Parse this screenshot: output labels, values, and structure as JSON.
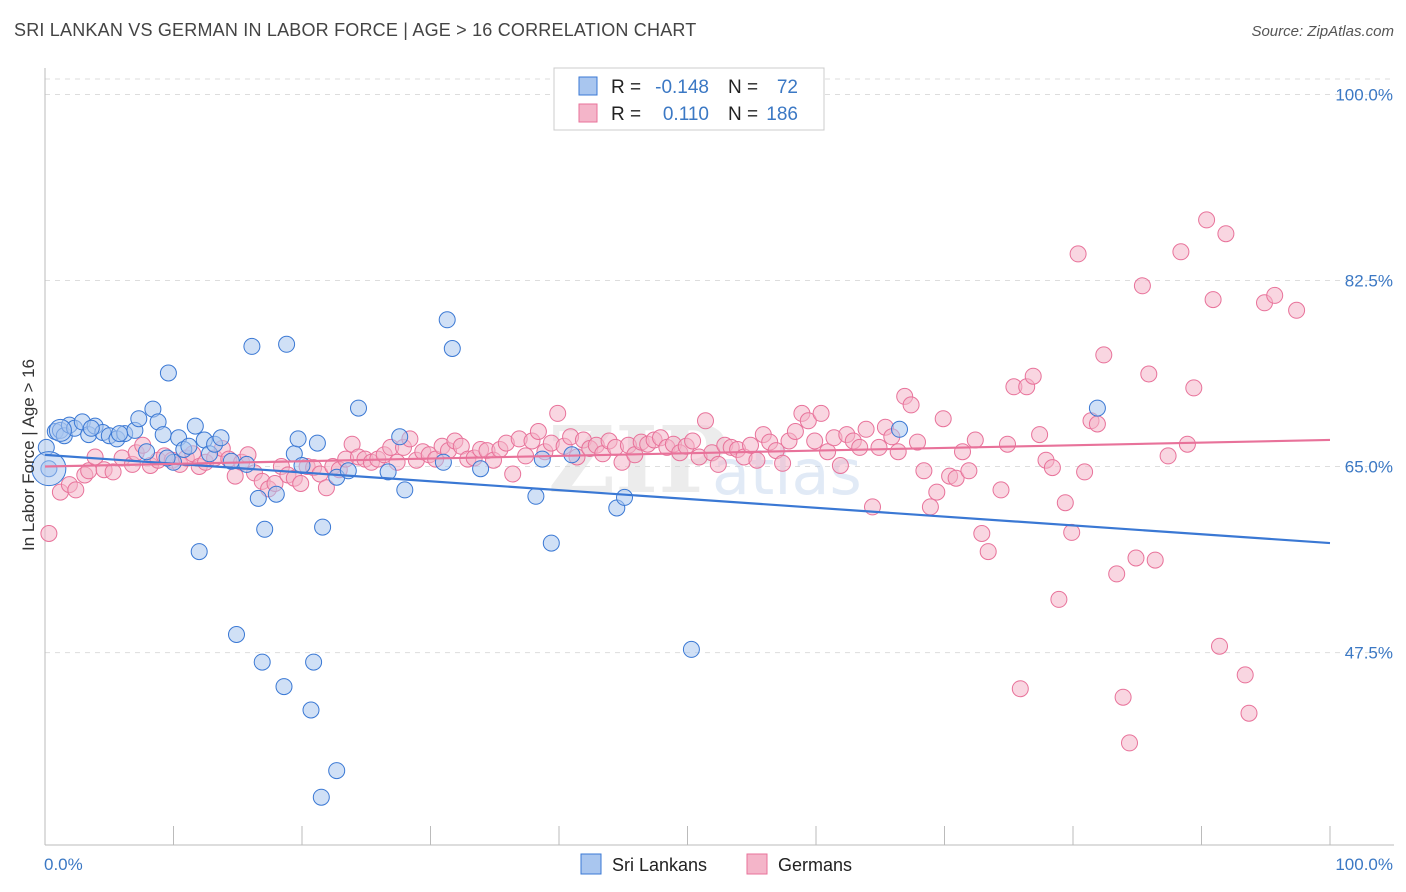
{
  "title": "SRI LANKAN VS GERMAN IN LABOR FORCE | AGE > 16 CORRELATION CHART",
  "source": "Source: ZipAtlas.com",
  "watermark": {
    "zip": "ZIP",
    "atlas": "atlas"
  },
  "colors": {
    "blue": "#3a78d4",
    "blue_fill": "#a9c6ef",
    "pink": "#e8729a",
    "pink_fill": "#f4b5c9",
    "axis_text": "#3b78c4"
  },
  "chart_data": {
    "type": "scatter",
    "title": "SRI LANKAN VS GERMAN IN LABOR FORCE | AGE > 16 CORRELATION CHART",
    "xlabel": "",
    "ylabel": "In Labor Force | Age > 16",
    "xlim": [
      0,
      100
    ],
    "ylim": [
      29.4,
      102.3
    ],
    "x_tick_labels": [
      {
        "value": 0,
        "label": "0.0%"
      },
      {
        "value": 100,
        "label": "100.0%"
      }
    ],
    "y_tick_labels": [
      {
        "value": 47.5,
        "label": "47.5%"
      },
      {
        "value": 65.0,
        "label": "65.0%"
      },
      {
        "value": 82.5,
        "label": "82.5%"
      },
      {
        "value": 100.0,
        "label": "100.0%"
      }
    ],
    "legend": {
      "entries": [
        {
          "name": "Sri Lankans",
          "r_label": "R =",
          "r_value": "-0.148",
          "n_label": "N =",
          "n_value": "72"
        },
        {
          "name": "Germans",
          "r_label": "R =",
          "r_value": "0.110",
          "n_label": "N =",
          "n_value": "186"
        }
      ]
    },
    "series": [
      {
        "name": "Sri Lankans",
        "color": "#3a78d4",
        "trend": {
          "x": [
            0,
            100
          ],
          "y": [
            66.1,
            57.8
          ]
        },
        "points": [
          [
            0.3,
            64.8
          ],
          [
            0.8,
            68.3
          ],
          [
            1.2,
            68.4
          ],
          [
            1.5,
            67.9
          ],
          [
            1.9,
            68.9
          ],
          [
            2.3,
            68.6
          ],
          [
            2.9,
            69.2
          ],
          [
            3.4,
            68.0
          ],
          [
            3.9,
            68.8
          ],
          [
            4.5,
            68.2
          ],
          [
            5.0,
            67.9
          ],
          [
            5.6,
            67.6
          ],
          [
            6.2,
            68.1
          ],
          [
            7.0,
            68.4
          ],
          [
            7.3,
            69.5
          ],
          [
            7.9,
            66.4
          ],
          [
            8.4,
            70.4
          ],
          [
            8.8,
            69.2
          ],
          [
            9.2,
            68.0
          ],
          [
            9.6,
            73.8
          ],
          [
            10.0,
            65.4
          ],
          [
            10.4,
            67.7
          ],
          [
            10.8,
            66.6
          ],
          [
            11.2,
            66.9
          ],
          [
            11.7,
            68.8
          ],
          [
            12.4,
            67.5
          ],
          [
            12.8,
            66.2
          ],
          [
            13.2,
            67.1
          ],
          [
            13.7,
            67.7
          ],
          [
            14.5,
            65.5
          ],
          [
            15.7,
            65.2
          ],
          [
            16.1,
            76.3
          ],
          [
            16.6,
            62.0
          ],
          [
            17.1,
            59.1
          ],
          [
            18.0,
            62.4
          ],
          [
            18.8,
            76.5
          ],
          [
            19.4,
            66.2
          ],
          [
            19.7,
            67.6
          ],
          [
            20.0,
            65.1
          ],
          [
            21.2,
            67.2
          ],
          [
            21.6,
            59.3
          ],
          [
            22.7,
            64.0
          ],
          [
            23.6,
            64.6
          ],
          [
            24.4,
            70.5
          ],
          [
            26.7,
            64.5
          ],
          [
            27.6,
            67.8
          ],
          [
            28.0,
            62.8
          ],
          [
            31.0,
            65.4
          ],
          [
            31.3,
            78.8
          ],
          [
            31.7,
            76.1
          ],
          [
            33.9,
            64.8
          ],
          [
            38.2,
            62.2
          ],
          [
            39.4,
            57.8
          ],
          [
            38.7,
            65.7
          ],
          [
            41.0,
            66.1
          ],
          [
            44.5,
            61.1
          ],
          [
            45.1,
            62.1
          ],
          [
            50.3,
            47.8
          ],
          [
            66.5,
            68.5
          ],
          [
            81.9,
            70.5
          ],
          [
            0.1,
            66.8
          ],
          [
            12.0,
            57.0
          ],
          [
            14.9,
            49.2
          ],
          [
            16.9,
            46.6
          ],
          [
            18.6,
            44.3
          ],
          [
            20.9,
            46.6
          ],
          [
            20.7,
            42.1
          ],
          [
            22.7,
            36.4
          ],
          [
            21.5,
            33.9
          ],
          [
            3.6,
            68.6
          ],
          [
            5.8,
            68.1
          ],
          [
            9.5,
            65.8
          ]
        ]
      },
      {
        "name": "Germans",
        "color": "#e8729a",
        "trend": {
          "x": [
            0,
            100
          ],
          "y": [
            65.0,
            67.5
          ]
        },
        "points": [
          [
            0.3,
            58.7
          ],
          [
            1.2,
            62.6
          ],
          [
            1.9,
            63.3
          ],
          [
            2.4,
            62.8
          ],
          [
            3.1,
            64.2
          ],
          [
            3.4,
            64.6
          ],
          [
            3.9,
            65.9
          ],
          [
            4.6,
            64.7
          ],
          [
            5.3,
            64.5
          ],
          [
            6.0,
            65.8
          ],
          [
            6.8,
            65.2
          ],
          [
            7.1,
            66.3
          ],
          [
            7.6,
            67.0
          ],
          [
            8.2,
            65.1
          ],
          [
            8.8,
            65.6
          ],
          [
            9.3,
            66.0
          ],
          [
            9.9,
            65.6
          ],
          [
            10.5,
            65.2
          ],
          [
            11.0,
            65.8
          ],
          [
            11.5,
            66.2
          ],
          [
            12.0,
            65.0
          ],
          [
            12.5,
            65.4
          ],
          [
            13.2,
            65.8
          ],
          [
            13.8,
            66.7
          ],
          [
            14.3,
            65.7
          ],
          [
            14.8,
            64.1
          ],
          [
            15.3,
            65.4
          ],
          [
            15.8,
            66.1
          ],
          [
            16.3,
            64.4
          ],
          [
            16.9,
            63.6
          ],
          [
            17.4,
            62.9
          ],
          [
            17.9,
            63.4
          ],
          [
            18.4,
            65.0
          ],
          [
            18.9,
            64.2
          ],
          [
            19.4,
            63.9
          ],
          [
            19.9,
            63.4
          ],
          [
            20.4,
            65.0
          ],
          [
            20.9,
            64.9
          ],
          [
            21.4,
            64.3
          ],
          [
            21.9,
            63.0
          ],
          [
            22.4,
            65.0
          ],
          [
            22.9,
            64.7
          ],
          [
            23.4,
            65.7
          ],
          [
            23.9,
            67.1
          ],
          [
            24.4,
            65.9
          ],
          [
            24.9,
            65.7
          ],
          [
            25.4,
            65.4
          ],
          [
            25.9,
            65.7
          ],
          [
            26.4,
            66.1
          ],
          [
            26.9,
            66.8
          ],
          [
            27.4,
            65.4
          ],
          [
            27.9,
            66.8
          ],
          [
            28.4,
            67.6
          ],
          [
            28.9,
            65.6
          ],
          [
            29.4,
            66.4
          ],
          [
            29.9,
            66.1
          ],
          [
            30.4,
            65.7
          ],
          [
            30.9,
            66.9
          ],
          [
            31.4,
            66.5
          ],
          [
            31.9,
            67.4
          ],
          [
            32.4,
            66.9
          ],
          [
            32.9,
            65.7
          ],
          [
            33.4,
            65.8
          ],
          [
            33.9,
            66.6
          ],
          [
            34.4,
            66.5
          ],
          [
            34.9,
            65.6
          ],
          [
            35.4,
            66.6
          ],
          [
            35.9,
            67.2
          ],
          [
            36.4,
            64.3
          ],
          [
            36.9,
            67.6
          ],
          [
            37.4,
            66.0
          ],
          [
            37.9,
            67.4
          ],
          [
            38.4,
            68.3
          ],
          [
            38.9,
            66.4
          ],
          [
            39.4,
            67.2
          ],
          [
            39.9,
            70.0
          ],
          [
            40.4,
            66.9
          ],
          [
            40.9,
            67.8
          ],
          [
            41.4,
            65.9
          ],
          [
            41.9,
            67.5
          ],
          [
            42.4,
            66.7
          ],
          [
            42.9,
            67.0
          ],
          [
            43.4,
            66.2
          ],
          [
            43.9,
            67.4
          ],
          [
            44.4,
            66.8
          ],
          [
            44.9,
            65.4
          ],
          [
            45.4,
            67.0
          ],
          [
            45.9,
            66.1
          ],
          [
            46.4,
            67.3
          ],
          [
            46.9,
            67.1
          ],
          [
            47.4,
            67.5
          ],
          [
            47.9,
            67.7
          ],
          [
            48.4,
            66.8
          ],
          [
            48.9,
            67.1
          ],
          [
            49.4,
            66.3
          ],
          [
            49.9,
            66.9
          ],
          [
            50.4,
            67.4
          ],
          [
            50.9,
            65.9
          ],
          [
            51.4,
            69.3
          ],
          [
            51.9,
            66.3
          ],
          [
            52.4,
            65.2
          ],
          [
            52.9,
            67.0
          ],
          [
            53.4,
            66.8
          ],
          [
            53.9,
            66.6
          ],
          [
            54.4,
            65.9
          ],
          [
            54.9,
            67.0
          ],
          [
            55.4,
            65.6
          ],
          [
            55.9,
            68.0
          ],
          [
            56.4,
            67.3
          ],
          [
            56.9,
            66.5
          ],
          [
            57.4,
            65.3
          ],
          [
            57.9,
            67.4
          ],
          [
            58.4,
            68.3
          ],
          [
            58.9,
            70.0
          ],
          [
            59.4,
            69.3
          ],
          [
            59.9,
            67.4
          ],
          [
            60.4,
            70.0
          ],
          [
            60.9,
            66.4
          ],
          [
            61.4,
            67.7
          ],
          [
            61.9,
            65.1
          ],
          [
            62.4,
            68.0
          ],
          [
            62.9,
            67.4
          ],
          [
            63.4,
            66.8
          ],
          [
            63.9,
            68.5
          ],
          [
            64.4,
            61.2
          ],
          [
            64.9,
            66.8
          ],
          [
            65.4,
            68.7
          ],
          [
            65.9,
            67.8
          ],
          [
            66.4,
            66.4
          ],
          [
            66.9,
            71.6
          ],
          [
            67.4,
            70.8
          ],
          [
            67.9,
            67.3
          ],
          [
            68.4,
            64.6
          ],
          [
            68.9,
            61.2
          ],
          [
            69.4,
            62.6
          ],
          [
            69.9,
            69.5
          ],
          [
            70.4,
            64.1
          ],
          [
            70.9,
            63.9
          ],
          [
            71.4,
            66.4
          ],
          [
            71.9,
            64.6
          ],
          [
            72.4,
            67.5
          ],
          [
            72.9,
            58.7
          ],
          [
            73.4,
            57.0
          ],
          [
            74.4,
            62.8
          ],
          [
            74.9,
            67.1
          ],
          [
            75.4,
            72.5
          ],
          [
            75.9,
            44.1
          ],
          [
            76.4,
            72.5
          ],
          [
            76.9,
            73.5
          ],
          [
            77.4,
            68.0
          ],
          [
            77.9,
            65.6
          ],
          [
            78.4,
            64.9
          ],
          [
            78.9,
            52.5
          ],
          [
            79.4,
            61.6
          ],
          [
            79.9,
            58.8
          ],
          [
            80.4,
            85.0
          ],
          [
            80.9,
            64.5
          ],
          [
            81.4,
            69.3
          ],
          [
            81.9,
            69.0
          ],
          [
            82.4,
            75.5
          ],
          [
            83.4,
            54.9
          ],
          [
            83.9,
            43.3
          ],
          [
            84.4,
            39.0
          ],
          [
            84.9,
            56.4
          ],
          [
            85.4,
            82.0
          ],
          [
            85.9,
            73.7
          ],
          [
            86.4,
            56.2
          ],
          [
            87.4,
            66.0
          ],
          [
            88.4,
            85.2
          ],
          [
            88.9,
            67.1
          ],
          [
            89.4,
            72.4
          ],
          [
            90.4,
            88.2
          ],
          [
            90.9,
            80.7
          ],
          [
            91.9,
            86.9
          ],
          [
            91.4,
            48.1
          ],
          [
            93.4,
            45.4
          ],
          [
            93.7,
            41.8
          ],
          [
            94.9,
            80.4
          ],
          [
            95.7,
            81.1
          ],
          [
            97.4,
            79.7
          ]
        ]
      }
    ]
  }
}
